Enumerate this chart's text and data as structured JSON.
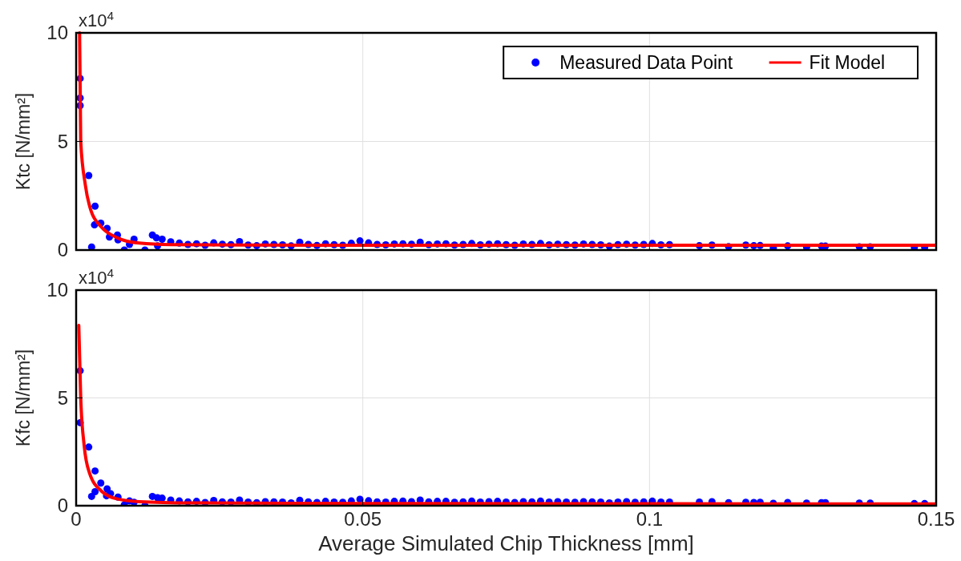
{
  "chart_data": [
    {
      "type": "scatter",
      "ylabel": "Ktc [N/mm²]",
      "annotations": [
        "x10$^{4}$"
      ],
      "xlim": [
        0,
        0.15
      ],
      "xticks": [
        0,
        0.05,
        0.1,
        0.15
      ],
      "ylim": [
        0,
        10
      ],
      "yticks": [
        0,
        5,
        10
      ],
      "grid": true,
      "legend": "top right",
      "tick_labels": "y",
      "series": [
        {
          "name": "Measured Data Point",
          "marker": "circle",
          "color": "#0000ff",
          "x": [
            0.0007,
            0.0007,
            0.0007,
            0.0022,
            0.0033,
            0.0027,
            0.0032,
            0.0043,
            0.0054,
            0.0058,
            0.0072,
            0.0073,
            0.0084,
            0.0093,
            0.0101,
            0.012,
            0.0133,
            0.014,
            0.0142,
            0.015,
            0.0165,
            0.018,
            0.0195,
            0.021,
            0.0225,
            0.024,
            0.0255,
            0.027,
            0.0285,
            0.03,
            0.0315,
            0.033,
            0.0345,
            0.036,
            0.0375,
            0.039,
            0.0405,
            0.042,
            0.0435,
            0.045,
            0.0465,
            0.048,
            0.0495,
            0.051,
            0.0525,
            0.054,
            0.0555,
            0.057,
            0.0585,
            0.06,
            0.0615,
            0.063,
            0.0645,
            0.066,
            0.0675,
            0.069,
            0.0705,
            0.072,
            0.0735,
            0.075,
            0.0765,
            0.078,
            0.0795,
            0.081,
            0.0825,
            0.084,
            0.0855,
            0.087,
            0.0885,
            0.09,
            0.0915,
            0.093,
            0.0945,
            0.096,
            0.0975,
            0.099,
            0.1005,
            0.102,
            0.1035,
            0.1087,
            0.1109,
            0.1138,
            0.1168,
            0.1182,
            0.1193,
            0.1216,
            0.1241,
            0.1274,
            0.13,
            0.1307,
            0.1366,
            0.1385,
            0.1462,
            0.148
          ],
          "values": [
            7.9,
            7.0,
            6.65,
            3.43,
            2.02,
            0.14,
            1.16,
            1.24,
            1.0,
            0.6,
            0.69,
            0.47,
            0,
            0.26,
            0.5,
            0,
            0.69,
            0.56,
            0.19,
            0.5,
            0.38,
            0.32,
            0.26,
            0.29,
            0.22,
            0.33,
            0.27,
            0.25,
            0.39,
            0.23,
            0.2,
            0.28,
            0.26,
            0.24,
            0.19,
            0.36,
            0.26,
            0.21,
            0.29,
            0.25,
            0.22,
            0.31,
            0.42,
            0.33,
            0.26,
            0.24,
            0.28,
            0.29,
            0.27,
            0.36,
            0.25,
            0.28,
            0.29,
            0.23,
            0.26,
            0.3,
            0.24,
            0.27,
            0.29,
            0.25,
            0.22,
            0.28,
            0.26,
            0.3,
            0.24,
            0.27,
            0.25,
            0.23,
            0.28,
            0.26,
            0.24,
            0.18,
            0.25,
            0.27,
            0.23,
            0.26,
            0.3,
            0.24,
            0.25,
            0.2,
            0.23,
            0.16,
            0.23,
            0.2,
            0.21,
            0.1,
            0.19,
            0.13,
            0.18,
            0.18,
            0.15,
            0.15,
            0.12,
            0.12
          ]
        },
        {
          "name": "Fit Model",
          "type": "line",
          "color": "#ff0000",
          "x": [
            0.0006,
            0.0008,
            0.0016,
            0.0026,
            0.0044,
            0.0072,
            0.011,
            0.0165,
            0.03,
            0.06,
            0.1,
            0.15
          ],
          "values": [
            10,
            5,
            3,
            1.8,
            1.06,
            0.56,
            0.32,
            0.25,
            0.23,
            0.22,
            0.22,
            0.22
          ]
        }
      ]
    },
    {
      "type": "scatter",
      "ylabel": "Kfc [N/mm²]",
      "xlabel": "Average Simulated Chip Thickness [mm]",
      "annotations": [
        "x10$^{4}$"
      ],
      "xlim": [
        0,
        0.15
      ],
      "xticks": [
        0,
        0.05,
        0.1,
        0.15
      ],
      "ylim": [
        0,
        10
      ],
      "yticks": [
        0,
        5,
        10
      ],
      "grid": true,
      "series": [
        {
          "marker": "circle",
          "color": "#0000ff",
          "x": [
            0.0007,
            0.0007,
            0.0022,
            0.0033,
            0.0027,
            0.0033,
            0.0043,
            0.0054,
            0.0053,
            0.006,
            0.0073,
            0.0084,
            0.0093,
            0.0101,
            0.012,
            0.0133,
            0.0142,
            0.015,
            0.0165,
            0.018,
            0.0195,
            0.021,
            0.0225,
            0.024,
            0.0255,
            0.027,
            0.0285,
            0.03,
            0.0315,
            0.033,
            0.0345,
            0.036,
            0.0375,
            0.039,
            0.0405,
            0.042,
            0.0435,
            0.045,
            0.0465,
            0.048,
            0.0495,
            0.051,
            0.0525,
            0.054,
            0.0555,
            0.057,
            0.0585,
            0.06,
            0.0615,
            0.063,
            0.0645,
            0.066,
            0.0675,
            0.069,
            0.0705,
            0.072,
            0.0735,
            0.075,
            0.0765,
            0.078,
            0.0795,
            0.081,
            0.0825,
            0.084,
            0.0855,
            0.087,
            0.0885,
            0.09,
            0.0915,
            0.093,
            0.0945,
            0.096,
            0.0975,
            0.099,
            0.1005,
            0.102,
            0.1035,
            0.1087,
            0.1109,
            0.1138,
            0.1168,
            0.1182,
            0.1193,
            0.1216,
            0.1241,
            0.1274,
            0.13,
            0.1307,
            0.1366,
            0.1385,
            0.1462,
            0.148
          ],
          "values": [
            6.26,
            3.85,
            2.72,
            1.61,
            0.43,
            0.65,
            1.05,
            0.78,
            0.46,
            0.56,
            0.4,
            0.04,
            0.22,
            0.16,
            0,
            0.43,
            0.37,
            0.35,
            0.26,
            0.22,
            0.18,
            0.2,
            0.15,
            0.24,
            0.18,
            0.17,
            0.26,
            0.17,
            0.14,
            0.19,
            0.18,
            0.17,
            0.13,
            0.25,
            0.18,
            0.15,
            0.2,
            0.17,
            0.16,
            0.22,
            0.3,
            0.23,
            0.18,
            0.17,
            0.2,
            0.21,
            0.19,
            0.26,
            0.18,
            0.2,
            0.2,
            0.16,
            0.18,
            0.21,
            0.17,
            0.19,
            0.2,
            0.17,
            0.15,
            0.19,
            0.18,
            0.21,
            0.17,
            0.19,
            0.17,
            0.16,
            0.19,
            0.18,
            0.17,
            0.13,
            0.17,
            0.19,
            0.16,
            0.18,
            0.21,
            0.17,
            0.17,
            0.17,
            0.19,
            0.14,
            0.16,
            0.15,
            0.16,
            0.11,
            0.15,
            0.12,
            0.14,
            0.14,
            0.12,
            0.12,
            0.1,
            0.1
          ]
        },
        {
          "type": "line",
          "color": "#ff0000",
          "x": [
            0.00046,
            0.0008,
            0.0014,
            0.0023,
            0.0044,
            0.0072,
            0.011,
            0.02,
            0.05,
            0.1,
            0.15
          ],
          "values": [
            8.36,
            5,
            2.79,
            1.54,
            0.68,
            0.31,
            0.19,
            0.13,
            0.1,
            0.09,
            0.08
          ]
        }
      ]
    }
  ]
}
